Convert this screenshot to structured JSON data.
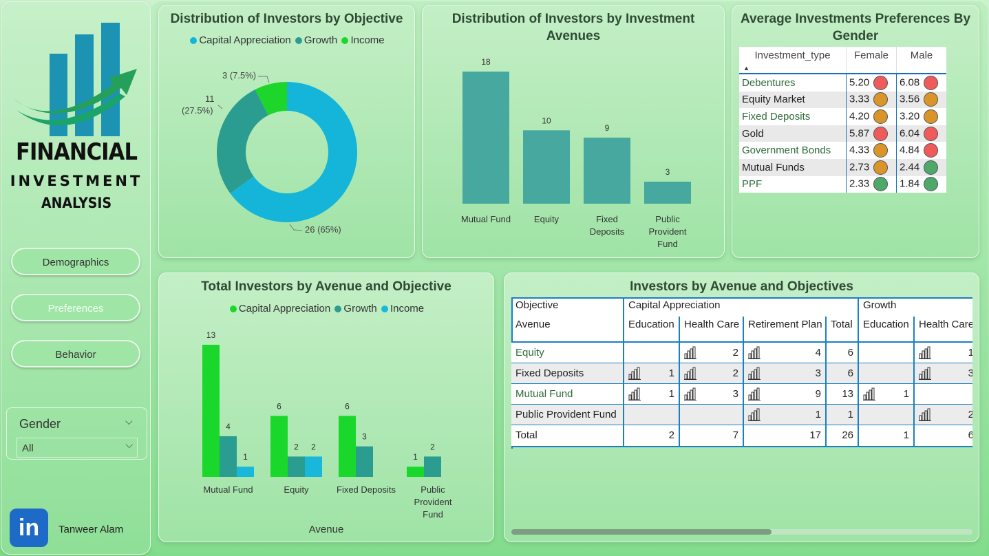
{
  "sidebar": {
    "logo_line1": "FINANCIAL",
    "logo_line2": "INVESTMENT",
    "logo_line3": "ANALYSIS",
    "nav": [
      "Demographics",
      "Preferences",
      "Behavior"
    ],
    "filter_label": "Gender",
    "filter_value": "All",
    "author": "Tanweer Alam",
    "linkedin_text": "in"
  },
  "donut": {
    "title": "Distribution of Investors by Objective",
    "legend": [
      "Capital Appreciation",
      "Growth",
      "Income"
    ],
    "labels": [
      "26 (65%)",
      "11",
      "(27.5%)",
      "3 (7.5%)"
    ]
  },
  "avenues": {
    "title_line1": "Distribution of Investors by Investment",
    "title_line2": "Avenues",
    "value_labels": [
      "18",
      "10",
      "9",
      "3"
    ],
    "category_lines": [
      [
        "Mutual Fund"
      ],
      [
        "Equity"
      ],
      [
        "Fixed",
        "Deposits"
      ],
      [
        "Public",
        "Provident",
        "Fund"
      ]
    ]
  },
  "gender_table": {
    "title_line1": "Average Investments Preferences By",
    "title_line2": "Gender",
    "headers": [
      "Investment_type",
      "Female",
      "Male"
    ],
    "rows": [
      [
        "Debentures",
        "5.20",
        "6.08"
      ],
      [
        "Equity Market",
        "3.33",
        "3.56"
      ],
      [
        "Fixed Deposits",
        "4.20",
        "3.20"
      ],
      [
        "Gold",
        "5.87",
        "6.04"
      ],
      [
        "Government Bonds",
        "4.33",
        "4.84"
      ],
      [
        "Mutual Funds",
        "2.73",
        "2.44"
      ],
      [
        "PPF",
        "2.33",
        "1.84"
      ]
    ],
    "indicator_colors": {
      "red": "#ef5b5b",
      "amber": "#d9952a",
      "green": "#4ea86b"
    },
    "indicators": [
      [
        "red",
        "red"
      ],
      [
        "amber",
        "amber"
      ],
      [
        "amber",
        "amber"
      ],
      [
        "red",
        "red"
      ],
      [
        "amber",
        "red"
      ],
      [
        "amber",
        "green"
      ],
      [
        "green",
        "green"
      ]
    ]
  },
  "grouped": {
    "title": "Total Investors by Avenue and Objective",
    "legend": [
      "Capital Appreciation",
      "Growth",
      "Income"
    ],
    "xlabel": "Avenue",
    "value_labels": [
      [
        "13",
        "4",
        "1"
      ],
      [
        "6",
        "2",
        "2"
      ],
      [
        "6",
        "3"
      ],
      [
        "1",
        "2"
      ]
    ],
    "category_lines": [
      [
        "Mutual Fund"
      ],
      [
        "Equity"
      ],
      [
        "Fixed Deposits"
      ],
      [
        "Public",
        "Provident",
        "Fund"
      ]
    ]
  },
  "matrix": {
    "title": "Investors by Avenue and Objectives",
    "row_header_1": "Objective",
    "row_header_2": "Avenue",
    "group_headers": [
      "Capital Appreciation",
      "Growth"
    ],
    "sub_headers": [
      "Education",
      "Health Care",
      "Retirement Plan",
      "Total",
      "Education",
      "Health Care"
    ],
    "rows": [
      {
        "name": "Equity",
        "cells": [
          "",
          "2",
          "4",
          "6",
          "",
          "1"
        ]
      },
      {
        "name": "Fixed Deposits",
        "cells": [
          "1",
          "2",
          "3",
          "6",
          "",
          "3"
        ]
      },
      {
        "name": "Mutual Fund",
        "cells": [
          "1",
          "3",
          "9",
          "13",
          "1",
          ""
        ]
      },
      {
        "name": "Public Provident Fund",
        "cells": [
          "",
          "",
          "1",
          "1",
          "",
          "2"
        ]
      },
      {
        "name": "Total",
        "cells": [
          "2",
          "7",
          "17",
          "26",
          "1",
          "6"
        ]
      }
    ]
  },
  "chart_data": [
    {
      "type": "pie",
      "title": "Distribution of Investors by Objective",
      "categories": [
        "Capital Appreciation",
        "Growth",
        "Income"
      ],
      "values": [
        26,
        11,
        3
      ],
      "colors": [
        "#14b5d8",
        "#2a9d90",
        "#1ed62b"
      ],
      "legend": "top"
    },
    {
      "type": "bar",
      "title": "Distribution of Investors by Investment Avenues",
      "categories": [
        "Mutual Fund",
        "Equity",
        "Fixed Deposits",
        "Public Provident Fund"
      ],
      "values": [
        18,
        10,
        9,
        3
      ],
      "color": "#46a89e",
      "ylim": [
        0,
        18
      ]
    },
    {
      "type": "bar",
      "title": "Total Investors by Avenue and Objective",
      "xlabel": "Avenue",
      "categories": [
        "Mutual Fund",
        "Equity",
        "Fixed Deposits",
        "Public Provident Fund"
      ],
      "series": [
        {
          "name": "Capital Appreciation",
          "values": [
            13,
            6,
            6,
            1
          ],
          "color": "#19d82b"
        },
        {
          "name": "Growth",
          "values": [
            4,
            2,
            3,
            2
          ],
          "color": "#2a9d90"
        },
        {
          "name": "Income",
          "values": [
            1,
            2,
            null,
            null
          ],
          "color": "#19b8db"
        }
      ],
      "ylim": [
        0,
        13
      ],
      "legend": "top"
    }
  ]
}
